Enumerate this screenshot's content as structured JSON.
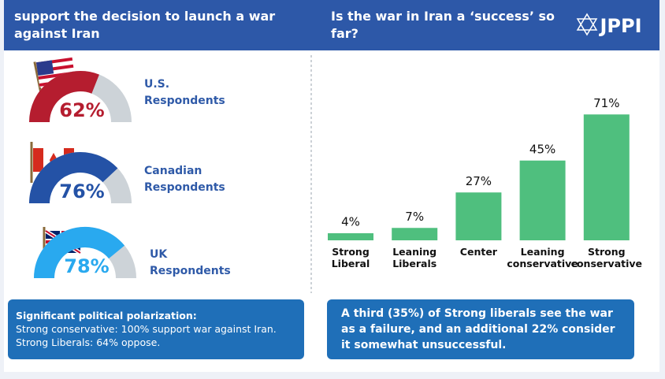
{
  "header": {
    "left_title": "support the decision to launch a war against Iran",
    "logo": "JPPI"
  },
  "chart_data": [
    {
      "type": "gauge",
      "title": "U.S. Respondents",
      "values": [
        62
      ],
      "value_labels": [
        "62%"
      ],
      "color": "#b51d2f"
    },
    {
      "type": "gauge",
      "title": "Canadian Respondents",
      "values": [
        76
      ],
      "value_labels": [
        "76%"
      ],
      "color": "#2452a6"
    },
    {
      "type": "gauge",
      "title": "UK Respondents",
      "values": [
        78
      ],
      "value_labels": [
        "78%"
      ],
      "color": "#29a9ef"
    },
    {
      "type": "bar",
      "title": "Is the war in Iran a ‘success’ so far?",
      "categories": [
        "Strong Liberal",
        "Leaning Liberals",
        "Center",
        "Leaning conservative",
        "Strong conservative"
      ],
      "values": [
        4,
        7,
        27,
        45,
        71
      ],
      "value_labels": [
        "4%",
        "7%",
        "27%",
        "45%",
        "71%"
      ],
      "color": "#4fbf7e"
    }
  ],
  "notes": {
    "left": {
      "title": "Significant political polarization:",
      "lines": [
        "Strong conservative: 100% support war against Iran.",
        "Strong Liberals: 64% oppose."
      ]
    },
    "right": "A third (35%) of Strong liberals see the war as a failure, and an additional 22% consider it somewhat unsuccessful."
  }
}
